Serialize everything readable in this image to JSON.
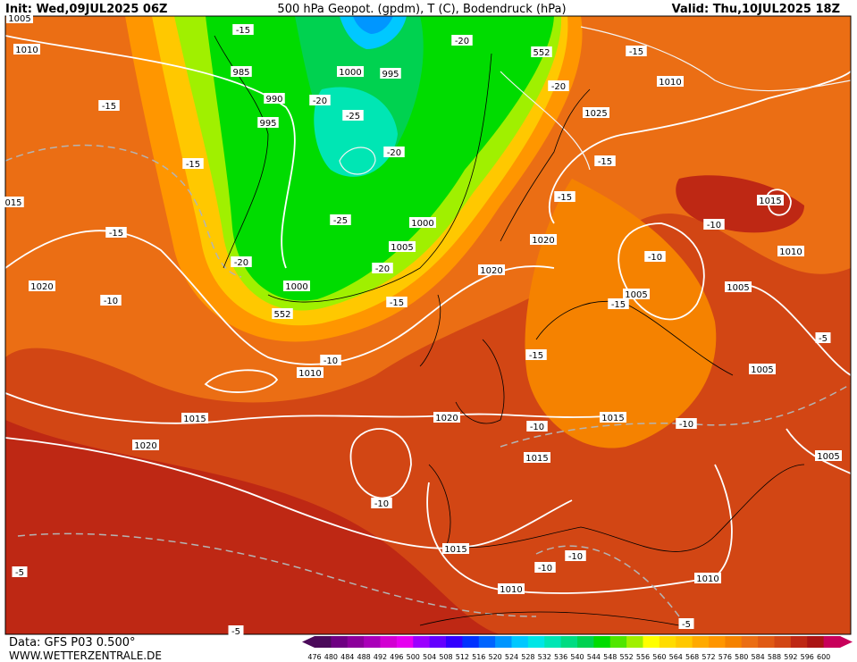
{
  "header": {
    "init": "Init: Wed,09JUL2025 06Z",
    "title": "500 hPa Geopot. (gpdm), T (C), Bodendruck (hPa)",
    "valid": "Valid: Thu,10JUL2025 18Z"
  },
  "map": {
    "labels": [
      "1005",
      "1010",
      "-15",
      "985",
      "990",
      "995",
      "1000",
      "995",
      "-20",
      "-25",
      "-20",
      "-25",
      "1000",
      "1005",
      "-20",
      "1000",
      "552",
      "-15",
      "-20",
      "552",
      "-15",
      "1010",
      "-20",
      "1025",
      "-15",
      "-15",
      "1020",
      "1020",
      "-15",
      "-15",
      "015",
      "-15",
      "-20",
      "1020",
      "-10",
      "-10",
      "1010",
      "1015",
      "1020",
      "1020",
      "-15",
      "-10",
      "1015",
      "-10",
      "1015",
      "1005",
      "-15",
      "1005",
      "1010",
      "-10",
      "1015",
      "-10",
      "1005",
      "-5",
      "1005",
      "-10",
      "1015",
      "-10",
      "-10",
      "1010",
      "1010",
      "-5",
      "-5",
      "-5"
    ]
  },
  "footer": {
    "data": "Data: GFS P03 0.500°",
    "site": "WWW.WETTERZENTRALE.DE"
  },
  "colorbar": {
    "labels": [
      476,
      480,
      484,
      488,
      492,
      496,
      500,
      504,
      508,
      512,
      516,
      520,
      524,
      528,
      532,
      536,
      540,
      544,
      548,
      552,
      556,
      560,
      564,
      568,
      572,
      576,
      580,
      584,
      588,
      592,
      596,
      600
    ],
    "colors": [
      "#4b0a5a",
      "#6e0082",
      "#8c009b",
      "#aa00b9",
      "#d200d2",
      "#e600f0",
      "#9b00ff",
      "#6400ff",
      "#3200ff",
      "#0032ff",
      "#0064ff",
      "#0096ff",
      "#00c8ff",
      "#00e6e6",
      "#00e6b4",
      "#00dc82",
      "#00d250",
      "#00dc00",
      "#50e600",
      "#a0f000",
      "#ffff00",
      "#ffdc00",
      "#ffc800",
      "#ffaa00",
      "#ff9600",
      "#f58200",
      "#eb6e14",
      "#e05a14",
      "#d24614",
      "#be2814",
      "#aa1414",
      "#c8005a"
    ]
  }
}
